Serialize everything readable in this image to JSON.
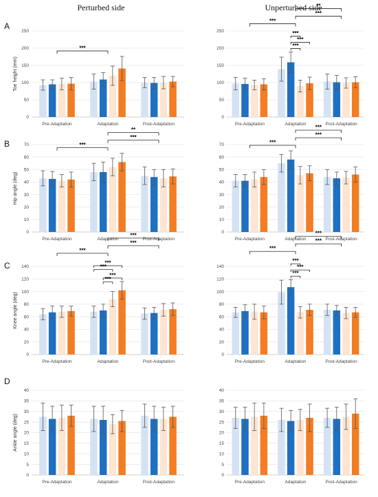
{
  "column_titles": [
    "Perturbed side",
    "Unperturbed side"
  ],
  "row_letters": [
    "A",
    "B",
    "C",
    "D"
  ],
  "colors": [
    "#d4e2f4",
    "#1f70c1",
    "#fde5d2",
    "#f47c22"
  ],
  "chart_data": [
    {
      "type": "bar",
      "row": "A",
      "side": "Perturbed side",
      "ylabel": "Toe height (mm)",
      "ylim": [
        0,
        250
      ],
      "yticks": [
        0,
        50,
        100,
        150,
        200,
        250
      ],
      "categories": [
        "Pre-Adaptation",
        "Adaptation",
        "Post-Adaptation"
      ],
      "values": [
        [
          93,
          95,
          96,
          97
        ],
        [
          103,
          109,
          120,
          141
        ],
        [
          100,
          99,
          100,
          103
        ]
      ],
      "errors": [
        [
          15,
          13,
          17,
          18
        ],
        [
          22,
          20,
          28,
          35
        ],
        [
          15,
          16,
          18,
          15
        ]
      ],
      "annotations": [
        {
          "label": "***",
          "from": [
            0
          ],
          "to": [
            1
          ]
        }
      ]
    },
    {
      "type": "bar",
      "row": "A",
      "side": "Unperturbed side",
      "ylabel": "",
      "ylim": [
        0,
        250
      ],
      "yticks": [
        0,
        50,
        100,
        150,
        200,
        250
      ],
      "categories": [
        "Pre-Adaptation",
        "Adaptation",
        "Post-Adaptation"
      ],
      "values": [
        [
          97,
          96,
          93,
          95
        ],
        [
          139,
          159,
          90,
          98
        ],
        [
          103,
          101,
          99,
          101
        ]
      ],
      "errors": [
        [
          18,
          17,
          14,
          16
        ],
        [
          35,
          30,
          17,
          18
        ],
        [
          22,
          20,
          15,
          16
        ]
      ],
      "annotations": [
        {
          "label": "***",
          "from": [
            0
          ],
          "to": [
            1
          ]
        },
        {
          "label": "***",
          "from": [
            1
          ],
          "to": [
            2
          ]
        },
        {
          "label": "**",
          "from": [
            1
          ],
          "to": [
            2
          ]
        },
        {
          "label": "***",
          "from": [
            1,
            1
          ],
          "to": [
            1,
            2
          ]
        },
        {
          "label": "***",
          "from": [
            1,
            1
          ],
          "to": [
            1,
            3
          ]
        },
        {
          "label": "***",
          "from": [
            1,
            1
          ],
          "to": [
            1,
            2
          ]
        }
      ]
    },
    {
      "type": "bar",
      "row": "B",
      "side": "Perturbed side",
      "ylabel": "Hip angle (deg)",
      "ylim": [
        0,
        70
      ],
      "yticks": [
        0,
        10,
        20,
        30,
        40,
        50,
        60,
        70
      ],
      "categories": [
        "Pre-Adaptation",
        "Adaptation",
        "Post-Adaptation"
      ],
      "values": [
        [
          43,
          42.5,
          41,
          42
        ],
        [
          48,
          48,
          52,
          56
        ],
        [
          45,
          44,
          43,
          44.5
        ]
      ],
      "errors": [
        [
          6,
          6,
          5,
          6
        ],
        [
          7,
          8,
          7,
          7
        ],
        [
          7,
          6,
          7,
          6
        ]
      ],
      "annotations": [
        {
          "label": "***",
          "from": [
            0
          ],
          "to": [
            1
          ]
        },
        {
          "label": "***",
          "from": [
            1
          ],
          "to": [
            2
          ]
        },
        {
          "label": "**",
          "from": [
            1
          ],
          "to": [
            2
          ]
        }
      ]
    },
    {
      "type": "bar",
      "row": "B",
      "side": "Unperturbed side",
      "ylabel": "",
      "ylim": [
        0,
        70
      ],
      "yticks": [
        0,
        10,
        20,
        30,
        40,
        50,
        60,
        70
      ],
      "categories": [
        "Pre-Adaptation",
        "Adaptation",
        "Post-Adaptation"
      ],
      "values": [
        [
          41,
          41,
          42,
          44
        ],
        [
          55,
          58,
          45.5,
          47
        ],
        [
          44,
          43,
          43.5,
          46
        ]
      ],
      "errors": [
        [
          5,
          5,
          6,
          6
        ],
        [
          7,
          7,
          7,
          6
        ],
        [
          6,
          5,
          5,
          6
        ]
      ],
      "annotations": [
        {
          "label": "***",
          "from": [
            0
          ],
          "to": [
            1
          ]
        },
        {
          "label": "***",
          "from": [
            1
          ],
          "to": [
            2
          ]
        },
        {
          "label": "***",
          "from": [
            1
          ],
          "to": [
            2
          ]
        }
      ]
    },
    {
      "type": "bar",
      "row": "C",
      "side": "Perturbed side",
      "ylabel": "Knee angle (deg)",
      "ylim": [
        0,
        140
      ],
      "yticks": [
        0,
        20,
        40,
        60,
        80,
        100,
        120,
        140
      ],
      "categories": [
        "Pre-Adaptation",
        "Adaptation",
        "Post-Adaptation"
      ],
      "values": [
        [
          64,
          67,
          68,
          69
        ],
        [
          68,
          70,
          88,
          102
        ],
        [
          65,
          66,
          71,
          72
        ]
      ],
      "errors": [
        [
          9,
          10,
          9,
          8
        ],
        [
          9,
          10,
          12,
          14
        ],
        [
          9,
          9,
          10,
          10
        ]
      ],
      "annotations": [
        {
          "label": "***",
          "from": [
            0
          ],
          "to": [
            1
          ]
        },
        {
          "label": "***",
          "from": [
            1
          ],
          "to": [
            2
          ]
        },
        {
          "label": "***",
          "from": [
            1
          ],
          "to": [
            2
          ]
        },
        {
          "label": "***",
          "from": [
            1,
            1
          ],
          "to": [
            1,
            3
          ]
        },
        {
          "label": "***",
          "from": [
            1,
            1
          ],
          "to": [
            1,
            2
          ]
        },
        {
          "label": "***",
          "from": [
            1,
            0
          ],
          "to": [
            1,
            3
          ]
        },
        {
          "label": "***",
          "from": [
            1,
            0
          ],
          "to": [
            1,
            2
          ]
        }
      ]
    },
    {
      "type": "bar",
      "row": "C",
      "side": "Unperturbed side",
      "ylabel": "",
      "ylim": [
        0,
        140
      ],
      "yticks": [
        0,
        20,
        40,
        60,
        80,
        100,
        120,
        140
      ],
      "categories": [
        "Pre-Adaptation",
        "Adaptation",
        "Post-Adaptation"
      ],
      "values": [
        [
          67,
          69,
          68,
          67
        ],
        [
          99,
          107,
          67,
          71
        ],
        [
          71,
          70,
          66,
          67
        ]
      ],
      "errors": [
        [
          8,
          10,
          12,
          10
        ],
        [
          19,
          12,
          9,
          9
        ],
        [
          9,
          8,
          9,
          8
        ]
      ],
      "annotations": [
        {
          "label": "***",
          "from": [
            0
          ],
          "to": [
            1
          ]
        },
        {
          "label": "***",
          "from": [
            1
          ],
          "to": [
            2
          ]
        },
        {
          "label": "***",
          "from": [
            1
          ],
          "to": [
            2
          ]
        },
        {
          "label": "***",
          "from": [
            1,
            1
          ],
          "to": [
            1,
            2
          ]
        },
        {
          "label": "***",
          "from": [
            1,
            1
          ],
          "to": [
            1,
            3
          ]
        },
        {
          "label": "***",
          "from": [
            1,
            1
          ],
          "to": [
            1,
            2
          ]
        }
      ]
    },
    {
      "type": "bar",
      "row": "D",
      "side": "Perturbed side",
      "ylabel": "Ankle angle (deg)",
      "ylim": [
        0,
        40
      ],
      "yticks": [
        0,
        5,
        10,
        15,
        20,
        25,
        30,
        35,
        40
      ],
      "categories": [
        "Pre-Adaptation",
        "Adaptation",
        "Post-Adaptation"
      ],
      "values": [
        [
          27.5,
          26.5,
          27,
          28
        ],
        [
          26.5,
          26,
          24,
          25.5
        ],
        [
          28,
          26.5,
          26.5,
          27.5
        ]
      ],
      "errors": [
        [
          6.5,
          6,
          6,
          5
        ],
        [
          6,
          6.5,
          4.5,
          5
        ],
        [
          5.5,
          6,
          5.5,
          5
        ]
      ],
      "annotations": []
    },
    {
      "type": "bar",
      "row": "D",
      "side": "Unperturbed side",
      "ylabel": "",
      "ylim": [
        0,
        40
      ],
      "yticks": [
        0,
        5,
        10,
        15,
        20,
        25,
        30,
        35,
        40
      ],
      "categories": [
        "Pre-Adaptation",
        "Adaptation",
        "Post-Adaptation"
      ],
      "values": [
        [
          27,
          26.5,
          27.5,
          28
        ],
        [
          26,
          25.5,
          26,
          27
        ],
        [
          27,
          26.5,
          27.5,
          29
        ]
      ],
      "errors": [
        [
          5,
          5.5,
          6.5,
          6
        ],
        [
          5.5,
          5,
          5,
          6.5
        ],
        [
          4.5,
          5.5,
          6,
          7
        ]
      ],
      "annotations": []
    }
  ]
}
